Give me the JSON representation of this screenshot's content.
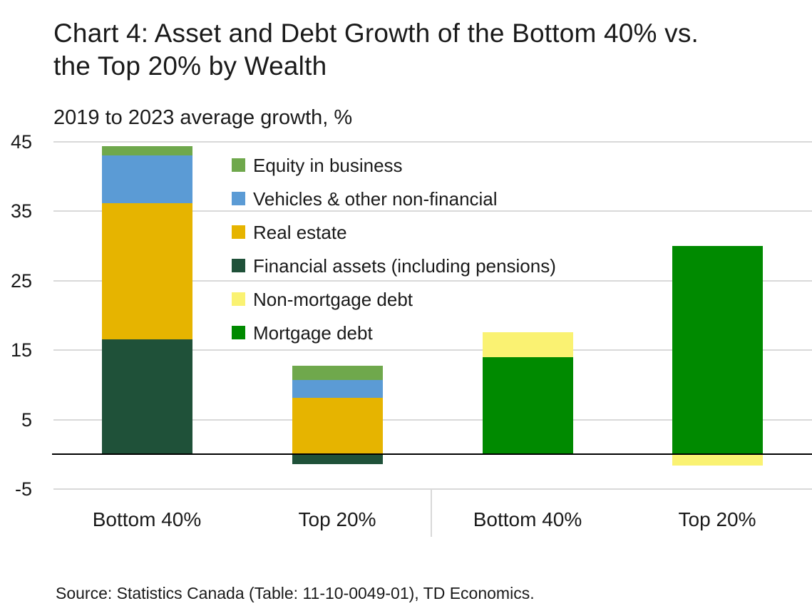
{
  "header": {
    "title_lines": [
      "Chart 4: Asset and Debt Growth of the Bottom 40% vs.",
      "the Top 20% by Wealth"
    ],
    "subtitle": "2019 to 2023 average growth, %"
  },
  "footer": {
    "source": "Source: Statistics Canada (Table: 11-10-0049-01), TD Economics."
  },
  "chart_data": {
    "type": "bar",
    "stacked": true,
    "title": "Chart 4: Asset and Debt Growth of the Bottom 40% vs. the Top 20% by Wealth",
    "ylabel": "2019 to 2023 average growth, %",
    "categories": [
      "Bottom 40%",
      "Top 20%",
      "Bottom 40%",
      "Top 20%"
    ],
    "divider_after_category_index": 1,
    "series": [
      {
        "name": "Equity in business",
        "color": "#6fa84c",
        "values": [
          1.3,
          2.1,
          0,
          0
        ]
      },
      {
        "name": "Vehicles & other non-financial",
        "color": "#5b9bd5",
        "values": [
          6.9,
          2.6,
          0,
          0
        ]
      },
      {
        "name": "Real estate",
        "color": "#e6b400",
        "values": [
          19.6,
          8.1,
          0,
          0
        ]
      },
      {
        "name": "Financial assets (including pensions)",
        "color": "#1f5139",
        "values": [
          16.6,
          -1.4,
          0,
          0
        ]
      },
      {
        "name": "Non-mortgage debt",
        "color": "#faf272",
        "values": [
          0,
          0,
          3.6,
          -1.6
        ]
      },
      {
        "name": "Mortgage debt",
        "color": "#008a00",
        "values": [
          0,
          0,
          14,
          30
        ]
      }
    ],
    "ylim": [
      -5,
      45
    ],
    "yticks": [
      45,
      35,
      25,
      15,
      5,
      -5
    ],
    "grid": true,
    "legend_position": "inside-top-left",
    "colors": {
      "gridline": "#d9d9d9",
      "zero_axis": "#000000",
      "text": "#1a1a1a"
    }
  }
}
